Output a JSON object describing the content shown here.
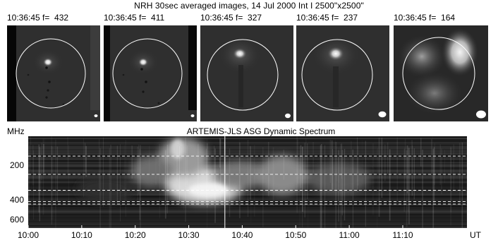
{
  "figure_title": "NRH 30sec averaged images, 14 Jul 2000 Int I 2500\"x2500\"",
  "panels": [
    {
      "label": "10:36:45 f=  432",
      "time": "10:36:45",
      "freq_mhz": 432,
      "beam": "small"
    },
    {
      "label": "10:36:45 f=  411",
      "time": "10:36:45",
      "freq_mhz": 411,
      "beam": "small"
    },
    {
      "label": "10:36:45 f=  327",
      "time": "10:36:45",
      "freq_mhz": 327,
      "beam": "medium"
    },
    {
      "label": "10:36:45 f=  237",
      "time": "10:36:45",
      "freq_mhz": 237,
      "beam": "medium"
    },
    {
      "label": "10:36:45 f=  164",
      "time": "10:36:45",
      "freq_mhz": 164,
      "beam": "large"
    }
  ],
  "chart_data": {
    "type": "heatmap",
    "title": "ARTEMIS-JLS ASG Dynamic Spectrum",
    "ylabel": "MHz",
    "xlabel": "UT",
    "x_ticks": [
      "10:00",
      "10:10",
      "10:20",
      "10:30",
      "10:40",
      "10:50",
      "11:00",
      "11:10"
    ],
    "y_ticks": [
      200,
      400,
      600
    ],
    "y_scale": "log",
    "ylim": [
      700,
      110
    ],
    "xlim": [
      "10:00",
      "11:22"
    ],
    "marker_time": "10:36:45",
    "reference_freqs_mhz": [
      432,
      411,
      327,
      237,
      164
    ]
  },
  "colors": {
    "background": "#000000",
    "curves": "#ffffff"
  }
}
